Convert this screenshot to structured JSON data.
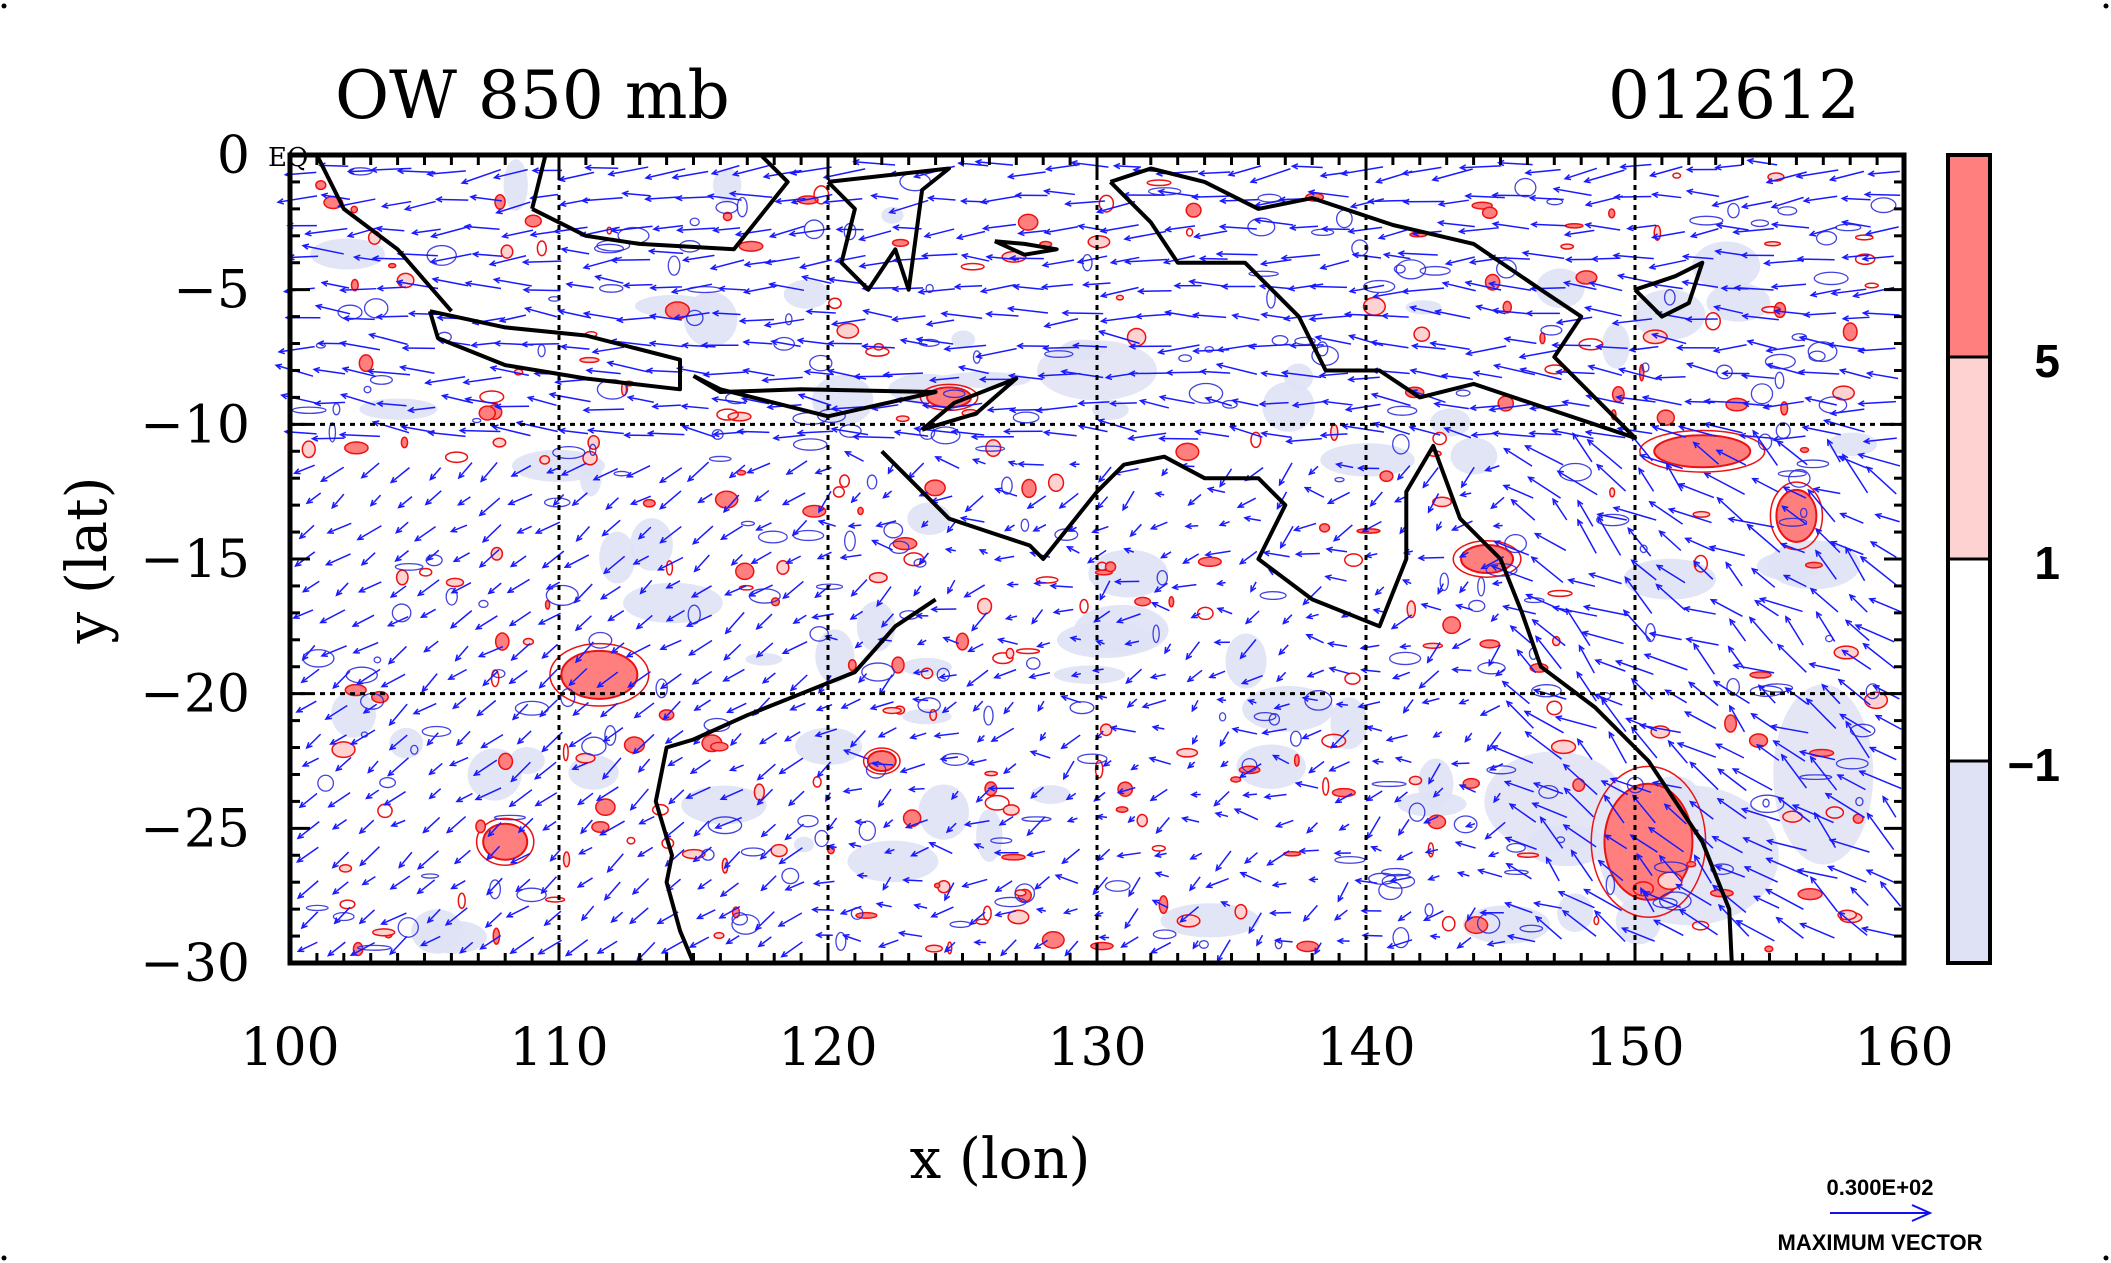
{
  "chart_data": {
    "type": "heatmap",
    "title_left": "OW 850 mb",
    "title_right": "012612",
    "xlabel": "x (lon)",
    "ylabel": "y (lat)",
    "corner_label": "EQ",
    "xlim": [
      100,
      160
    ],
    "ylim": [
      -30,
      0
    ],
    "x_ticks": [
      100,
      110,
      120,
      130,
      140,
      150,
      160
    ],
    "x_tick_labels": [
      "100",
      "110",
      "120",
      "130",
      "140",
      "150",
      "160"
    ],
    "y_ticks": [
      0,
      -5,
      -10,
      -15,
      -20,
      -25,
      -30
    ],
    "y_tick_labels": [
      "0",
      "−5",
      "−10",
      "−15",
      "−20",
      "−25",
      "−30"
    ],
    "grid": true,
    "gridlines_x": [
      110,
      120,
      130,
      140,
      150
    ],
    "gridlines_y": [
      -10,
      -20
    ],
    "colorbar": {
      "levels": [
        "5",
        "1",
        "−1"
      ],
      "bands": [
        {
          "range": "> 5",
          "color": "#ff7f7f"
        },
        {
          "range": "1 to 5",
          "color": "#ffd2d2"
        },
        {
          "range": "-1 to 1",
          "color": "#ffffff"
        },
        {
          "range": "< -1",
          "color": "#dfe2f5"
        }
      ]
    },
    "vector_legend": {
      "value": "0.300E+02",
      "caption": "MAXIMUM VECTOR",
      "color": "#1010ee"
    },
    "colors": {
      "vectors": "#1a1aff",
      "positive_contour": "#ee1111",
      "negative_contour": "#2222dd",
      "coastline": "#000000"
    },
    "coastlines": [
      [
        [
          101,
          0
        ],
        [
          102,
          -2
        ],
        [
          104,
          -3.5
        ],
        [
          106,
          -5.8
        ]
      ],
      [
        [
          105.2,
          -5.8
        ],
        [
          108,
          -6.4
        ],
        [
          111,
          -6.7
        ],
        [
          114.5,
          -7.6
        ],
        [
          114.5,
          -8.7
        ],
        [
          111,
          -8.3
        ],
        [
          108,
          -7.8
        ],
        [
          105.5,
          -6.8
        ],
        [
          105.2,
          -5.8
        ]
      ],
      [
        [
          115,
          -8.2
        ],
        [
          116,
          -8.8
        ],
        [
          119,
          -8.7
        ],
        [
          124,
          -8.8
        ],
        [
          120,
          -9.7
        ],
        [
          116,
          -8.7
        ],
        [
          115,
          -8.2
        ]
      ],
      [
        [
          123.5,
          -10.2
        ],
        [
          124.7,
          -9.2
        ],
        [
          127,
          -8.3
        ],
        [
          125.5,
          -9.6
        ],
        [
          123.5,
          -10.2
        ]
      ],
      [
        [
          109,
          -2
        ],
        [
          109.5,
          0
        ],
        [
          117.5,
          0
        ],
        [
          118.5,
          -1
        ],
        [
          116.5,
          -3.5
        ],
        [
          113,
          -3.3
        ],
        [
          111,
          -3
        ],
        [
          109,
          -2
        ]
      ],
      [
        [
          120,
          -1
        ],
        [
          121,
          -2
        ],
        [
          120.5,
          -4
        ],
        [
          121.5,
          -5
        ],
        [
          122.5,
          -3.5
        ],
        [
          123,
          -5
        ],
        [
          123.5,
          -1.3
        ],
        [
          124.5,
          -0.5
        ],
        [
          120,
          -1
        ]
      ],
      [
        [
          126.2,
          -3.2
        ],
        [
          127.3,
          -3.3
        ],
        [
          128.5,
          -3.5
        ],
        [
          127.3,
          -3.7
        ],
        [
          126.2,
          -3.2
        ]
      ],
      [
        [
          130.5,
          -1
        ],
        [
          132,
          -0.5
        ],
        [
          134,
          -1
        ],
        [
          136,
          -2
        ],
        [
          138,
          -1.6
        ],
        [
          141,
          -2.6
        ],
        [
          144,
          -3.3
        ],
        [
          146.5,
          -5
        ],
        [
          148,
          -6
        ],
        [
          147,
          -7.5
        ],
        [
          150,
          -10.5
        ],
        [
          147,
          -9.5
        ],
        [
          144,
          -8.5
        ],
        [
          142,
          -9
        ],
        [
          140.5,
          -8
        ],
        [
          138.5,
          -8
        ],
        [
          137.5,
          -6
        ],
        [
          135.5,
          -4
        ],
        [
          133,
          -4
        ],
        [
          132,
          -2.5
        ],
        [
          130.5,
          -1
        ]
      ],
      [
        [
          150,
          -5
        ],
        [
          151.5,
          -4.5
        ],
        [
          152.5,
          -4
        ],
        [
          152,
          -5.5
        ],
        [
          151,
          -6
        ],
        [
          150,
          -5
        ]
      ],
      [
        [
          122,
          -11
        ],
        [
          123,
          -12
        ],
        [
          124.5,
          -13.5
        ],
        [
          126,
          -14
        ],
        [
          127.5,
          -14.5
        ],
        [
          128,
          -15
        ],
        [
          130,
          -12.5
        ],
        [
          131,
          -11.5
        ],
        [
          132.5,
          -11.2
        ],
        [
          134,
          -12
        ],
        [
          136,
          -12
        ],
        [
          137,
          -13
        ],
        [
          136,
          -15
        ],
        [
          138,
          -16.5
        ],
        [
          140.5,
          -17.5
        ],
        [
          141.5,
          -15
        ],
        [
          141.5,
          -12.5
        ],
        [
          142.5,
          -10.8
        ],
        [
          143.5,
          -13.5
        ],
        [
          145,
          -15
        ],
        [
          145.8,
          -17
        ],
        [
          146.5,
          -19
        ],
        [
          148.5,
          -20.5
        ],
        [
          150.5,
          -22.5
        ],
        [
          152.5,
          -25.5
        ],
        [
          153.5,
          -28
        ],
        [
          153.6,
          -30
        ]
      ],
      [
        [
          119,
          -20
        ],
        [
          117,
          -20.8
        ],
        [
          115,
          -21.7
        ],
        [
          114,
          -22
        ],
        [
          113.6,
          -24
        ],
        [
          114.2,
          -26
        ],
        [
          114,
          -27
        ],
        [
          114.5,
          -28.8
        ],
        [
          115,
          -30
        ]
      ],
      [
        [
          124,
          -16.5
        ],
        [
          122.5,
          -17.5
        ],
        [
          121,
          -19.2
        ],
        [
          119,
          -20
        ]
      ]
    ]
  }
}
